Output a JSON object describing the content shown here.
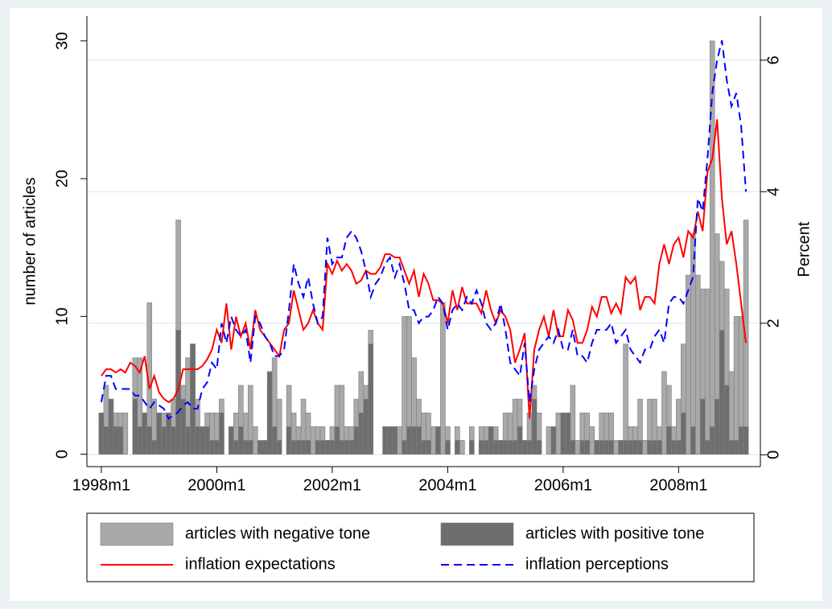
{
  "chart_data": {
    "type": "bar",
    "y_title": "number of articles",
    "y2_title": "Percent",
    "xlim": [
      453,
      593
    ],
    "xticks": [
      {
        "value": 456,
        "label": "1998m1"
      },
      {
        "value": 480,
        "label": "2000m1"
      },
      {
        "value": 504,
        "label": "2002m1"
      },
      {
        "value": 528,
        "label": "2004m1"
      },
      {
        "value": 552,
        "label": "2006m1"
      },
      {
        "value": 576,
        "label": "2008m1"
      }
    ],
    "ylim": [
      -0.9,
      31.8
    ],
    "yticks": [
      0,
      10,
      20,
      30
    ],
    "y2lim": [
      -0.18,
      6.67
    ],
    "y2ticks": [
      0,
      2,
      4,
      6
    ],
    "grid": "y2",
    "x": [
      456,
      457,
      458,
      459,
      460,
      461,
      462,
      463,
      464,
      465,
      466,
      467,
      468,
      469,
      470,
      471,
      472,
      473,
      474,
      475,
      476,
      477,
      478,
      479,
      480,
      481,
      482,
      483,
      484,
      485,
      486,
      487,
      488,
      489,
      490,
      491,
      492,
      493,
      494,
      495,
      496,
      497,
      498,
      499,
      500,
      501,
      502,
      503,
      504,
      505,
      506,
      507,
      508,
      509,
      510,
      511,
      512,
      513,
      514,
      515,
      516,
      517,
      518,
      519,
      520,
      521,
      522,
      523,
      524,
      525,
      526,
      527,
      528,
      529,
      530,
      531,
      532,
      533,
      534,
      535,
      536,
      537,
      538,
      539,
      540,
      541,
      542,
      543,
      544,
      545,
      546,
      547,
      548,
      549,
      550,
      551,
      552,
      553,
      554,
      555,
      556,
      557,
      558,
      559,
      560,
      561,
      562,
      563,
      564,
      565,
      566,
      567,
      568,
      569,
      570,
      571,
      572,
      573,
      574,
      575,
      576,
      577,
      578,
      579,
      580,
      581,
      582,
      583,
      584,
      585,
      586,
      587,
      588,
      589,
      590
    ],
    "series": [
      {
        "name": "articles with negative tone",
        "type": "bar",
        "color": "#a9a9a9",
        "values": [
          3,
          5,
          4,
          3,
          3,
          3,
          0,
          7,
          7,
          3,
          11,
          4,
          3,
          3,
          2,
          4,
          17,
          5,
          7,
          8,
          4,
          2,
          3,
          3,
          3,
          4,
          0,
          2,
          3,
          5,
          3,
          5,
          2,
          0,
          1,
          5,
          7,
          4,
          0,
          5,
          3,
          2,
          4,
          3,
          2,
          2,
          2,
          1,
          2,
          5,
          5,
          2,
          2,
          4,
          6,
          5,
          9,
          0,
          0,
          2,
          2,
          2,
          2,
          10,
          10,
          7,
          4,
          3,
          3,
          2,
          2,
          11,
          2,
          0,
          2,
          1,
          0,
          2,
          0,
          2,
          2,
          2,
          2,
          1,
          3,
          3,
          4,
          4,
          1,
          3,
          5,
          3,
          0,
          2,
          0,
          3,
          1,
          3,
          5,
          1,
          3,
          3,
          2,
          1,
          3,
          3,
          3,
          1,
          1,
          8,
          2,
          2,
          4,
          1,
          4,
          4,
          2,
          6,
          5,
          2,
          4,
          8,
          13,
          16,
          13,
          12,
          12,
          30,
          16,
          14,
          12,
          6,
          10,
          10,
          17
        ]
      },
      {
        "name": "articles with positive tone",
        "type": "bar",
        "color": "#6e6e6e",
        "values": [
          3,
          2,
          4,
          2,
          2,
          0,
          0,
          4,
          2,
          3,
          2,
          1,
          3,
          2,
          3,
          2,
          9,
          4,
          2,
          8,
          2,
          2,
          2,
          1,
          1,
          3,
          0,
          2,
          1,
          2,
          1,
          1,
          0,
          1,
          1,
          6,
          2,
          1,
          0,
          2,
          1,
          1,
          1,
          1,
          0,
          1,
          1,
          1,
          1,
          2,
          1,
          1,
          1,
          2,
          3,
          4,
          8,
          0,
          0,
          2,
          2,
          2,
          0,
          1,
          2,
          2,
          2,
          1,
          1,
          0,
          2,
          0,
          1,
          0,
          1,
          0,
          0,
          1,
          0,
          1,
          1,
          2,
          1,
          1,
          1,
          1,
          1,
          2,
          1,
          1,
          4,
          1,
          0,
          0,
          2,
          0,
          3,
          3,
          1,
          0,
          1,
          1,
          0,
          1,
          1,
          1,
          1,
          0,
          1,
          1,
          1,
          1,
          1,
          0,
          1,
          1,
          1,
          0,
          2,
          1,
          1,
          3,
          0,
          2,
          0,
          4,
          1,
          2,
          4,
          9,
          5,
          1,
          1,
          2,
          2
        ]
      },
      {
        "name": "inflation expectations",
        "type": "line",
        "axis": "y2",
        "color": "#ff0000",
        "line_style": "solid",
        "values": [
          1.2,
          1.3,
          1.3,
          1.25,
          1.3,
          1.25,
          1.4,
          1.35,
          1.25,
          1.5,
          1.0,
          1.2,
          0.95,
          0.85,
          0.8,
          0.85,
          1.0,
          1.3,
          1.3,
          1.3,
          1.3,
          1.35,
          1.45,
          1.6,
          1.9,
          1.7,
          2.3,
          1.6,
          2.1,
          1.8,
          2.0,
          1.6,
          2.2,
          1.9,
          1.8,
          1.7,
          1.6,
          1.5,
          1.9,
          2.0,
          2.5,
          2.2,
          1.9,
          2.0,
          2.2,
          2.0,
          1.9,
          2.9,
          2.75,
          2.95,
          2.8,
          2.9,
          2.8,
          2.6,
          2.65,
          2.8,
          2.75,
          2.75,
          2.85,
          3.05,
          3.05,
          3.0,
          3.0,
          2.8,
          2.6,
          2.8,
          2.4,
          2.75,
          2.6,
          2.35,
          2.35,
          2.3,
          2.0,
          2.5,
          2.2,
          2.55,
          2.3,
          2.3,
          2.3,
          2.15,
          2.5,
          2.2,
          2.0,
          2.2,
          2.1,
          1.9,
          1.4,
          1.6,
          1.85,
          0.55,
          1.6,
          1.9,
          2.1,
          1.8,
          2.2,
          1.8,
          1.8,
          2.2,
          2.05,
          1.7,
          1.7,
          1.9,
          2.25,
          2.1,
          2.4,
          2.4,
          2.15,
          2.3,
          2.15,
          2.7,
          2.6,
          2.7,
          2.2,
          2.4,
          2.4,
          2.3,
          2.9,
          3.2,
          2.9,
          3.2,
          3.3,
          3.0,
          3.4,
          3.3,
          3.7,
          3.4,
          4.3,
          4.5,
          5.1,
          3.9,
          3.2,
          3.4,
          2.9,
          2.3,
          1.7
        ]
      },
      {
        "name": "inflation perceptions",
        "type": "line",
        "axis": "y2",
        "color": "#0000ff",
        "line_style": "dashed",
        "values": [
          0.8,
          1.2,
          1.2,
          1.0,
          1.0,
          1.0,
          1.0,
          0.9,
          0.9,
          0.8,
          0.7,
          0.8,
          0.75,
          0.7,
          0.55,
          0.6,
          0.65,
          0.75,
          0.8,
          0.7,
          0.7,
          1.0,
          1.1,
          1.4,
          1.3,
          2.0,
          1.7,
          2.1,
          1.9,
          1.8,
          1.9,
          1.4,
          2.1,
          2.0,
          1.8,
          1.7,
          1.5,
          1.5,
          1.6,
          2.2,
          2.9,
          2.6,
          2.4,
          2.7,
          2.3,
          2.0,
          2.1,
          3.3,
          2.9,
          3.0,
          3.0,
          3.3,
          3.4,
          3.3,
          3.1,
          2.8,
          2.4,
          2.6,
          2.7,
          2.9,
          3.0,
          2.7,
          2.9,
          2.6,
          2.2,
          2.2,
          2.0,
          2.1,
          2.1,
          2.2,
          2.4,
          2.3,
          1.9,
          2.2,
          2.3,
          2.2,
          2.4,
          2.3,
          2.5,
          2.3,
          2.0,
          1.9,
          2.0,
          2.3,
          1.9,
          1.4,
          1.3,
          1.2,
          1.7,
          0.8,
          1.3,
          1.6,
          1.7,
          1.8,
          1.7,
          1.9,
          1.6,
          1.6,
          1.9,
          1.5,
          1.5,
          1.4,
          1.7,
          1.9,
          1.9,
          1.9,
          2.0,
          1.7,
          1.8,
          1.9,
          1.6,
          1.5,
          1.4,
          1.6,
          1.6,
          1.8,
          1.9,
          1.7,
          2.3,
          2.4,
          2.4,
          2.3,
          2.5,
          2.7,
          3.9,
          3.7,
          4.5,
          5.5,
          6.0,
          6.3,
          5.7,
          5.3,
          5.5,
          5.0,
          4.0
        ]
      }
    ]
  }
}
